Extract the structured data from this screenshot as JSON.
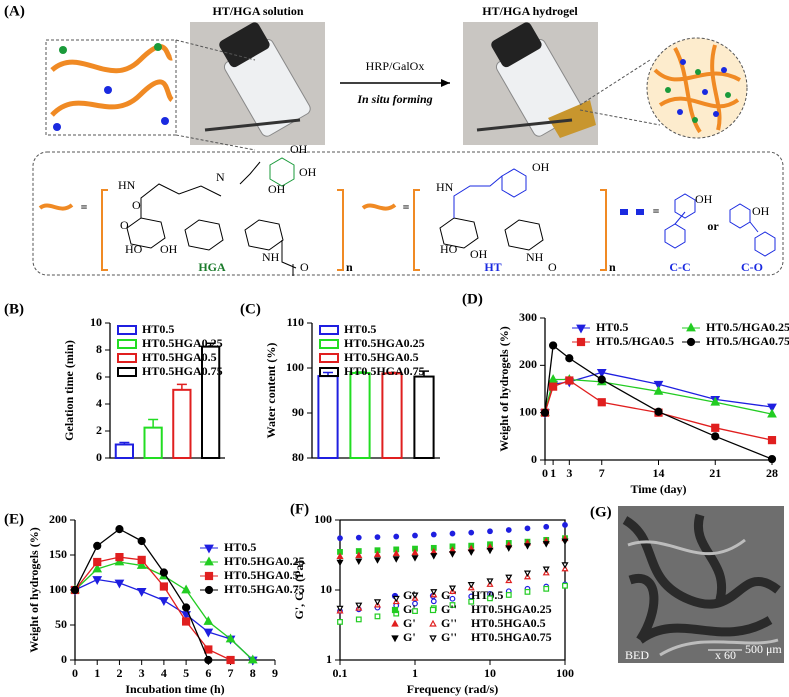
{
  "figure": {
    "panel_a": {
      "panel": "(A)",
      "left_photo_title": "HT/HGA solution",
      "right_photo_title": "HT/HGA hydrogel",
      "arrow_top": "HRP/GalOx",
      "arrow_bottom": "In situ forming",
      "hga_label": "HGA",
      "ht_label": "HT",
      "cc_label": "C-C",
      "co_label": "C-O",
      "or_text": "or",
      "repeat_n": "n",
      "equals": "=",
      "atoms": [
        "HN",
        "O",
        "N",
        "OH",
        "OH",
        "OH",
        "O",
        "HO",
        "OH",
        "NH",
        "O",
        "HN",
        "OH",
        "OH",
        "HO",
        "NH",
        "O",
        "OH",
        "OH"
      ]
    },
    "panel_g": {
      "panel": "(G)",
      "detector": "BED",
      "magnification": "x 60",
      "scale_bar": "500 μm"
    }
  },
  "chart_data": [
    {
      "type": "bar",
      "panel": "(B)",
      "ylabel": "Gelation time (min)",
      "ylim": [
        0,
        10
      ],
      "yticks": [
        0,
        2,
        4,
        6,
        8,
        10
      ],
      "series": [
        {
          "name": "HT0.5",
          "color": "#1f1fe0",
          "values": [
            1.0
          ],
          "errors": [
            0.15
          ]
        },
        {
          "name": "HT0.5HGA0.25",
          "color": "#22dd22",
          "values": [
            2.25
          ],
          "errors": [
            0.6
          ]
        },
        {
          "name": "HT0.5HGA0.5",
          "color": "#e01f1f",
          "values": [
            5.05
          ],
          "errors": [
            0.4
          ]
        },
        {
          "name": "HT0.5HGA0.75",
          "color": "#000000",
          "values": [
            8.25
          ],
          "errors": [
            0.25
          ]
        }
      ]
    },
    {
      "type": "bar",
      "panel": "(C)",
      "ylabel": "Water content (%)",
      "ylim": [
        80,
        110
      ],
      "yticks": [
        80,
        90,
        100,
        110
      ],
      "series": [
        {
          "name": "HT0.5",
          "color": "#1f1fe0",
          "values": [
            98.2
          ],
          "errors": [
            0.8
          ]
        },
        {
          "name": "HT0.5HGA0.25",
          "color": "#22dd22",
          "values": [
            98.9
          ],
          "errors": [
            0.2
          ]
        },
        {
          "name": "HT0.5HGA0.5",
          "color": "#e01f1f",
          "values": [
            98.8
          ],
          "errors": [
            0.2
          ]
        },
        {
          "name": "HT0.5HGA0.75",
          "color": "#000000",
          "values": [
            98.1
          ],
          "errors": [
            1.2
          ]
        }
      ]
    },
    {
      "type": "line",
      "panel": "(D)",
      "ylabel": "Weight of hydrogels (%)",
      "xlabel": "Time (day)",
      "x": [
        0,
        1,
        3,
        7,
        14,
        21,
        28
      ],
      "xlim": [
        0,
        28
      ],
      "xticks": [
        0,
        1,
        3,
        7,
        14,
        21,
        28
      ],
      "ylim": [
        0,
        300
      ],
      "yticks": [
        0,
        100,
        200,
        300
      ],
      "series": [
        {
          "name": "HT0.5",
          "color": "#1f1fe0",
          "marker": "triangle-down",
          "values": [
            100,
            160,
            165,
            185,
            160,
            128,
            112
          ]
        },
        {
          "name": "HT0.5/HGA0.25",
          "color": "#22cc22",
          "marker": "triangle-up",
          "values": [
            100,
            170,
            170,
            165,
            145,
            122,
            97
          ]
        },
        {
          "name": "HT0.5/HGA0.5",
          "color": "#e01f1f",
          "marker": "square",
          "values": [
            100,
            155,
            168,
            122,
            100,
            68,
            42
          ]
        },
        {
          "name": "HT0.5/HGA0.75",
          "color": "#000000",
          "marker": "circle",
          "values": [
            100,
            242,
            215,
            170,
            102,
            50,
            2
          ]
        }
      ]
    },
    {
      "type": "line",
      "panel": "(E)",
      "ylabel": "Weight of hydrogels (%)",
      "xlabel": "Incubation time (h)",
      "x": [
        0,
        1,
        2,
        3,
        4,
        5,
        6,
        7,
        8
      ],
      "xlim": [
        0,
        9
      ],
      "xticks": [
        0,
        1,
        2,
        3,
        4,
        5,
        6,
        7,
        8,
        9
      ],
      "ylim": [
        0,
        200
      ],
      "yticks": [
        0,
        50,
        100,
        150,
        200
      ],
      "series": [
        {
          "name": "HT0.5",
          "color": "#1f1fe0",
          "marker": "triangle-down",
          "values": [
            100,
            115,
            110,
            98,
            85,
            65,
            40,
            30,
            0
          ]
        },
        {
          "name": "HT0.5HGA0.25",
          "color": "#22cc22",
          "marker": "triangle-up",
          "values": [
            100,
            130,
            140,
            135,
            120,
            100,
            55,
            30,
            0
          ]
        },
        {
          "name": "HT0.5HGA0.5",
          "color": "#e01f1f",
          "marker": "square",
          "values": [
            100,
            140,
            147,
            143,
            105,
            55,
            15,
            0,
            null
          ]
        },
        {
          "name": "HT0.5HGA0.75",
          "color": "#000000",
          "marker": "circle",
          "values": [
            100,
            163,
            187,
            170,
            125,
            75,
            0,
            null,
            null
          ]
        }
      ]
    },
    {
      "type": "rheology",
      "panel": "(F)",
      "ylabel": "G', G'' (Pa)",
      "xlabel": "Frequency (rad/s)",
      "xlog": true,
      "ylog": true,
      "x": [
        0.1,
        0.178,
        0.316,
        0.562,
        1,
        1.78,
        3.16,
        5.62,
        10,
        17.8,
        31.6,
        56.2,
        100
      ],
      "xlim": [
        0.1,
        100
      ],
      "xticks": [
        0.1,
        1,
        10,
        100
      ],
      "ylim": [
        1,
        100
      ],
      "yticks": [
        1,
        10,
        100
      ],
      "storage_label": "G'",
      "loss_label": "G''",
      "groups": [
        {
          "name": "HT0.5",
          "color": "#1f1fe0",
          "marker": "circle",
          "storage": [
            55,
            56,
            57,
            58,
            60,
            62,
            64,
            66,
            69,
            72,
            76,
            80,
            85
          ],
          "loss": [
            5.0,
            5.3,
            5.6,
            6.0,
            6.4,
            6.9,
            7.5,
            8.1,
            8.8,
            9.6,
            10.4,
            11.2,
            12
          ]
        },
        {
          "name": "HT0.5HGA0.25",
          "color": "#22cc22",
          "marker": "square",
          "storage": [
            35,
            36,
            37,
            38,
            39,
            40,
            42,
            43,
            45,
            47,
            49,
            52,
            55
          ],
          "loss": [
            3.5,
            3.8,
            4.2,
            4.6,
            5.0,
            5.5,
            6.1,
            6.8,
            7.6,
            8.5,
            9.4,
            10.4,
            11.5
          ]
        },
        {
          "name": "HT0.5HGA0.5",
          "color": "#e01f1f",
          "marker": "triangle-up",
          "storage": [
            30,
            31,
            32,
            33,
            34,
            35,
            37,
            39,
            41,
            44,
            47,
            50,
            54
          ],
          "loss": [
            5.0,
            5.5,
            6.1,
            6.8,
            7.6,
            8.5,
            9.5,
            10.7,
            12,
            13.6,
            15.4,
            17.5,
            20
          ]
        },
        {
          "name": "HT0.5HGA0.75",
          "color": "#000000",
          "marker": "triangle-down",
          "storage": [
            25,
            26,
            27,
            28,
            29,
            31,
            33,
            35,
            37,
            40,
            43,
            46,
            50
          ],
          "loss": [
            5.5,
            6.1,
            6.8,
            7.6,
            8.5,
            9.5,
            10.7,
            12,
            13.5,
            15.3,
            17.5,
            20,
            23
          ]
        }
      ]
    }
  ]
}
